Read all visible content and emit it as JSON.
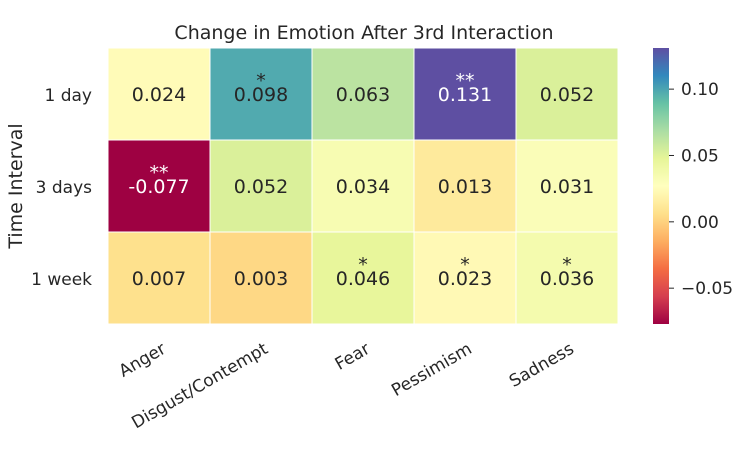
{
  "chart_data": {
    "type": "heatmap",
    "title": "Change in Emotion After 3rd Interaction",
    "ylabel": "Time Interval",
    "xlabel": "",
    "columns": [
      "Anger",
      "Disgust/Contempt",
      "Fear",
      "Pessimism",
      "Sadness"
    ],
    "rows": [
      "1 day",
      "3 days",
      "1 week"
    ],
    "values": [
      [
        0.024,
        0.098,
        0.063,
        0.131,
        0.052
      ],
      [
        -0.077,
        0.052,
        0.034,
        0.013,
        0.031
      ],
      [
        0.007,
        0.003,
        0.046,
        0.023,
        0.036
      ]
    ],
    "labels": [
      [
        "0.024",
        "0.098",
        "0.063",
        "0.131",
        "0.052"
      ],
      [
        "-0.077",
        "0.052",
        "0.034",
        "0.013",
        "0.031"
      ],
      [
        "0.007",
        "0.003",
        "0.046",
        "0.023",
        "0.036"
      ]
    ],
    "significance": [
      [
        "",
        "*",
        "",
        "**",
        ""
      ],
      [
        "**",
        "",
        "",
        "",
        ""
      ],
      [
        "",
        "",
        "*",
        "*",
        "*"
      ]
    ],
    "colormap": "Spectral",
    "colorbar": {
      "vmin": -0.077,
      "vmax": 0.131,
      "ticks": [
        -0.05,
        0.0,
        0.05,
        0.1
      ],
      "tick_labels": [
        "−0.05",
        "0.00",
        "0.05",
        "0.10"
      ]
    }
  }
}
